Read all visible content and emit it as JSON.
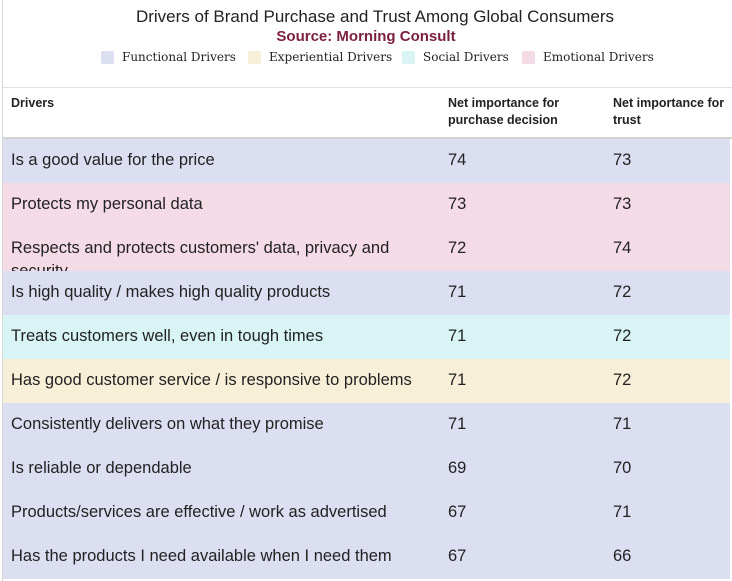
{
  "chart_data": {
    "type": "table",
    "title": "Drivers of Brand Purchase and Trust Among Global Consumers",
    "subtitle": "Source: Morning Consult",
    "legend": [
      {
        "label": "Functional Drivers",
        "category": "functional",
        "color": "#dcdff2"
      },
      {
        "label": "Experiential Drivers",
        "category": "experiential",
        "color": "#f8efd9"
      },
      {
        "label": "Social Drivers",
        "category": "social",
        "color": "#d8f4f4"
      },
      {
        "label": "Emotional Drivers",
        "category": "emotional",
        "color": "#f4dbe6"
      }
    ],
    "columns": [
      "Drivers",
      "Net importance for purchase decision",
      "Net importance for trust"
    ],
    "rows": [
      {
        "driver": "Is a good value for the price",
        "category": "functional",
        "purchase": 74,
        "trust": 73
      },
      {
        "driver": "Protects my personal data",
        "category": "emotional",
        "purchase": 73,
        "trust": 73
      },
      {
        "driver": "Respects and protects customers' data, privacy and security",
        "category": "emotional",
        "purchase": 72,
        "trust": 74
      },
      {
        "driver": "Is high quality / makes high quality products",
        "category": "functional",
        "purchase": 71,
        "trust": 72
      },
      {
        "driver": "Treats customers well, even in tough times",
        "category": "social",
        "purchase": 71,
        "trust": 72
      },
      {
        "driver": "Has good customer service / is responsive to problems",
        "category": "experiential",
        "purchase": 71,
        "trust": 72
      },
      {
        "driver": "Consistently delivers on what they promise",
        "category": "functional",
        "purchase": 71,
        "trust": 71
      },
      {
        "driver": "Is reliable or dependable",
        "category": "functional",
        "purchase": 69,
        "trust": 70
      },
      {
        "driver": "Products/services are effective / work as advertised",
        "category": "functional",
        "purchase": 67,
        "trust": 71
      },
      {
        "driver": "Has the products I need available when I need them",
        "category": "functional",
        "purchase": 67,
        "trust": 66
      }
    ]
  }
}
